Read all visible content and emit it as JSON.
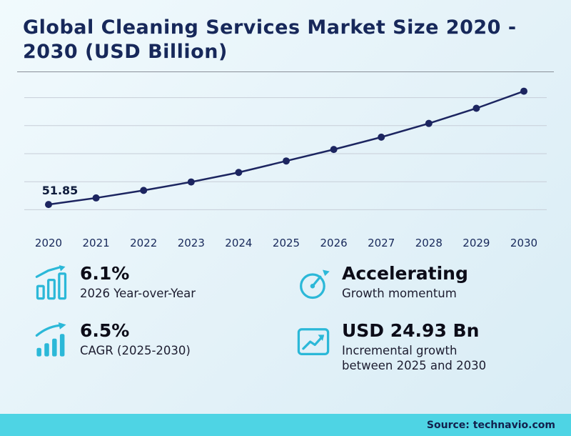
{
  "header": {
    "title": "Global Cleaning Services Market Size 2020 - 2030 (USD Billion)"
  },
  "chart_data": {
    "type": "line",
    "title": "Global Cleaning Services Market Size 2020 - 2030 (USD Billion)",
    "categories": [
      "2020",
      "2021",
      "2022",
      "2023",
      "2024",
      "2025",
      "2026",
      "2027",
      "2028",
      "2029",
      "2030"
    ],
    "values": [
      51.85,
      54.2,
      56.9,
      59.9,
      63.3,
      67.4,
      71.5,
      75.9,
      80.8,
      86.2,
      92.3
    ],
    "labeled_points": [
      {
        "index": 0,
        "label": "51.85"
      }
    ],
    "ylim": [
      45,
      95
    ],
    "gridlines": [
      50,
      60,
      70,
      80,
      90
    ],
    "grid": true,
    "legend": "none",
    "marker": "circle",
    "line_color": "#1c2560",
    "xlabel": "",
    "ylabel": ""
  },
  "stats": [
    {
      "icon": "bar-chart-icon",
      "value": "6.1%",
      "caption": "2026 Year-over-Year"
    },
    {
      "icon": "gauge-icon",
      "value": "Accelerating",
      "caption": "Growth momentum"
    },
    {
      "icon": "growth-bars-icon",
      "value": "6.5%",
      "caption": "CAGR (2025-2030)"
    },
    {
      "icon": "chart-box-icon",
      "value": "USD 24.93 Bn",
      "caption": "Incremental growth between 2025 and 2030"
    }
  ],
  "source": {
    "label": "Source: technavio.com"
  },
  "colors": {
    "accent": "#2bb8d8",
    "source_bar": "#4ed4e4",
    "title": "#17285a",
    "line": "#1c2560",
    "grid": "#c7ced8"
  }
}
